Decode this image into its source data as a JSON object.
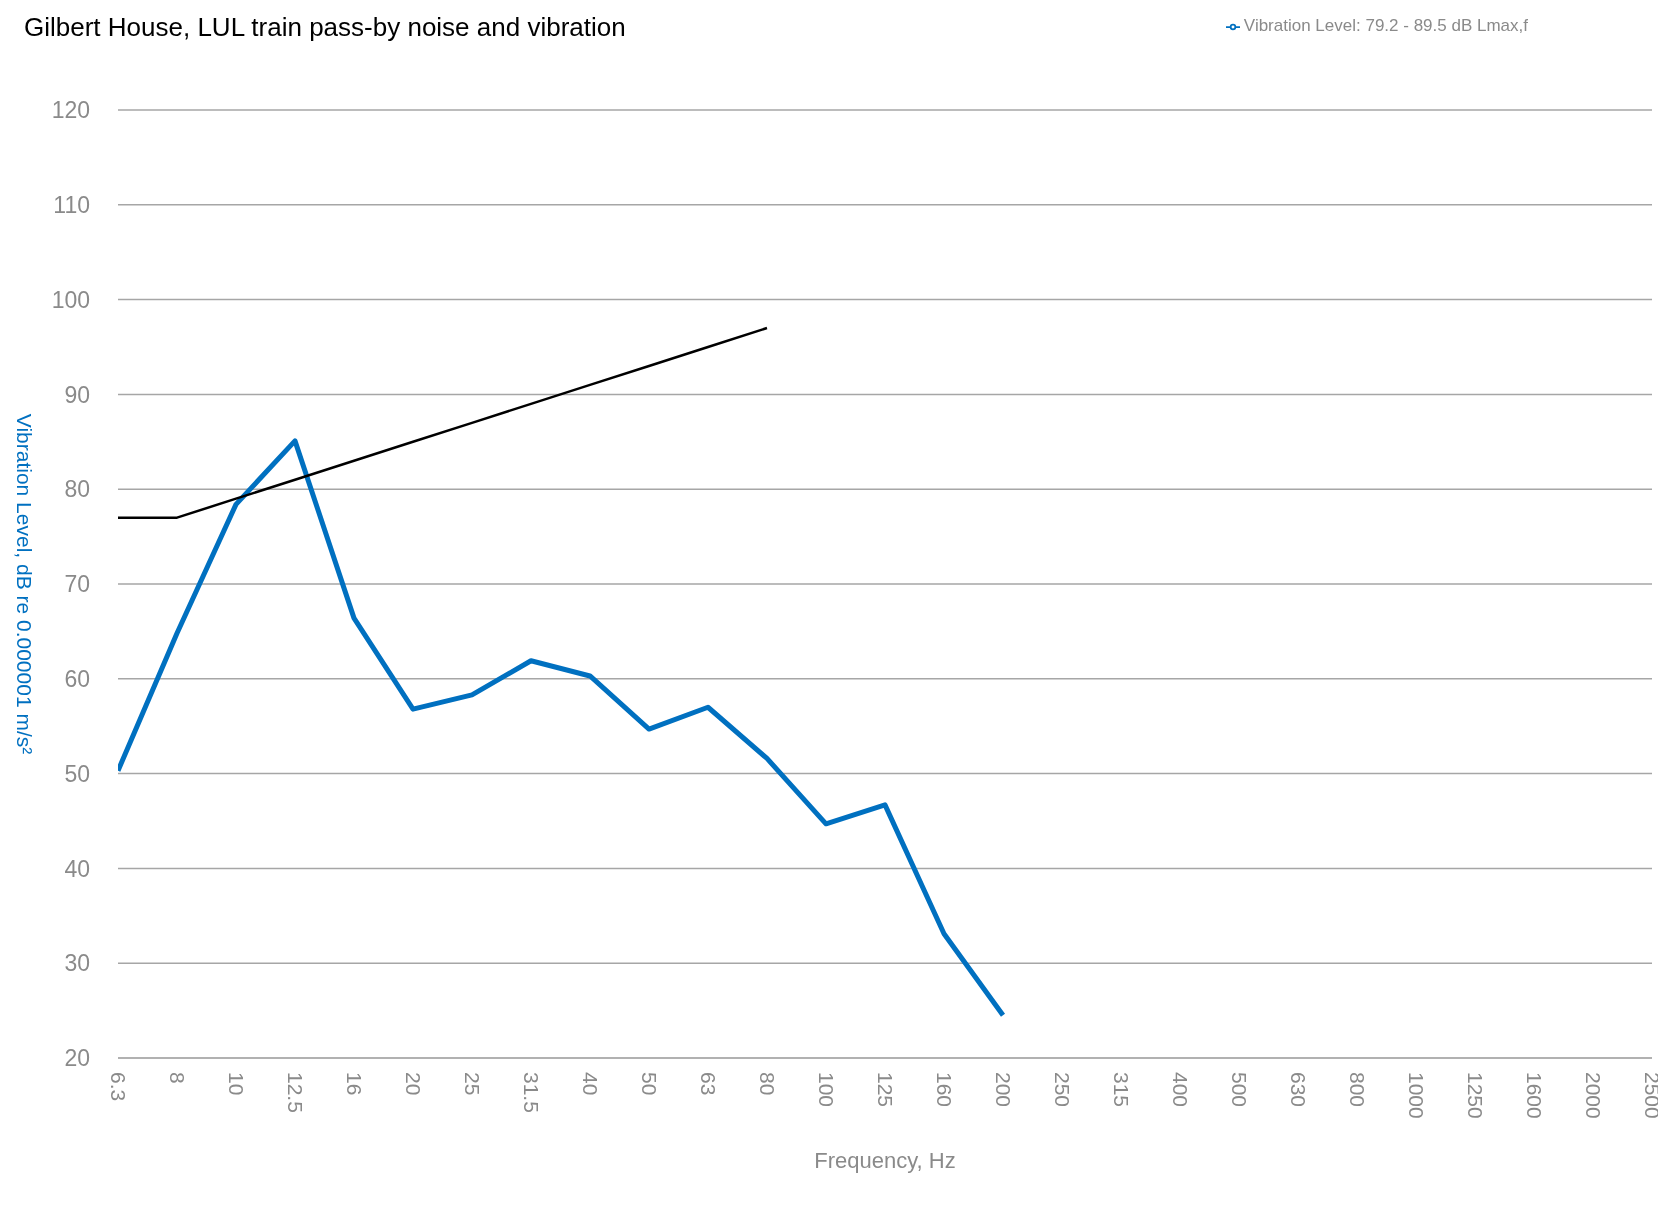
{
  "chart_data": {
    "type": "line",
    "title": "Gilbert House, LUL train pass-by noise and vibration",
    "xlabel": "Frequency, Hz",
    "ylabel": "Vibration Level, dB re 0.000001 m/s²",
    "categories": [
      "6.3",
      "8",
      "10",
      "12.5",
      "16",
      "20",
      "25",
      "31.5",
      "40",
      "50",
      "63",
      "80",
      "100",
      "125",
      "160",
      "200",
      "250",
      "315",
      "400",
      "500",
      "630",
      "800",
      "1000",
      "1250",
      "1600",
      "2000",
      "2500"
    ],
    "series": [
      {
        "name": "Vibration Level: 79.2 - 89.5 dB Lmax,f",
        "color": "#0070c0",
        "values": [
          50.3,
          64.8,
          78.4,
          85.1,
          66.4,
          56.8,
          58.3,
          61.9,
          60.3,
          54.7,
          57,
          51.6,
          44.7,
          46.7,
          33.1,
          24.5,
          null,
          null,
          null,
          null,
          null,
          null,
          null,
          null,
          null,
          null,
          null
        ]
      },
      {
        "color": "#000000",
        "values": [
          77,
          77,
          79,
          81,
          83,
          85,
          87,
          89,
          91,
          93,
          95,
          97,
          null,
          null,
          null,
          null,
          null,
          null,
          null,
          null,
          null,
          null,
          null,
          null,
          null,
          null,
          null
        ]
      }
    ],
    "ylim": [
      20,
      120
    ],
    "yticks": [
      20,
      30,
      40,
      50,
      60,
      70,
      80,
      90,
      100,
      110,
      120
    ],
    "grid": "y",
    "legend": "top right",
    "marker": "none",
    "line_style": "solid"
  }
}
